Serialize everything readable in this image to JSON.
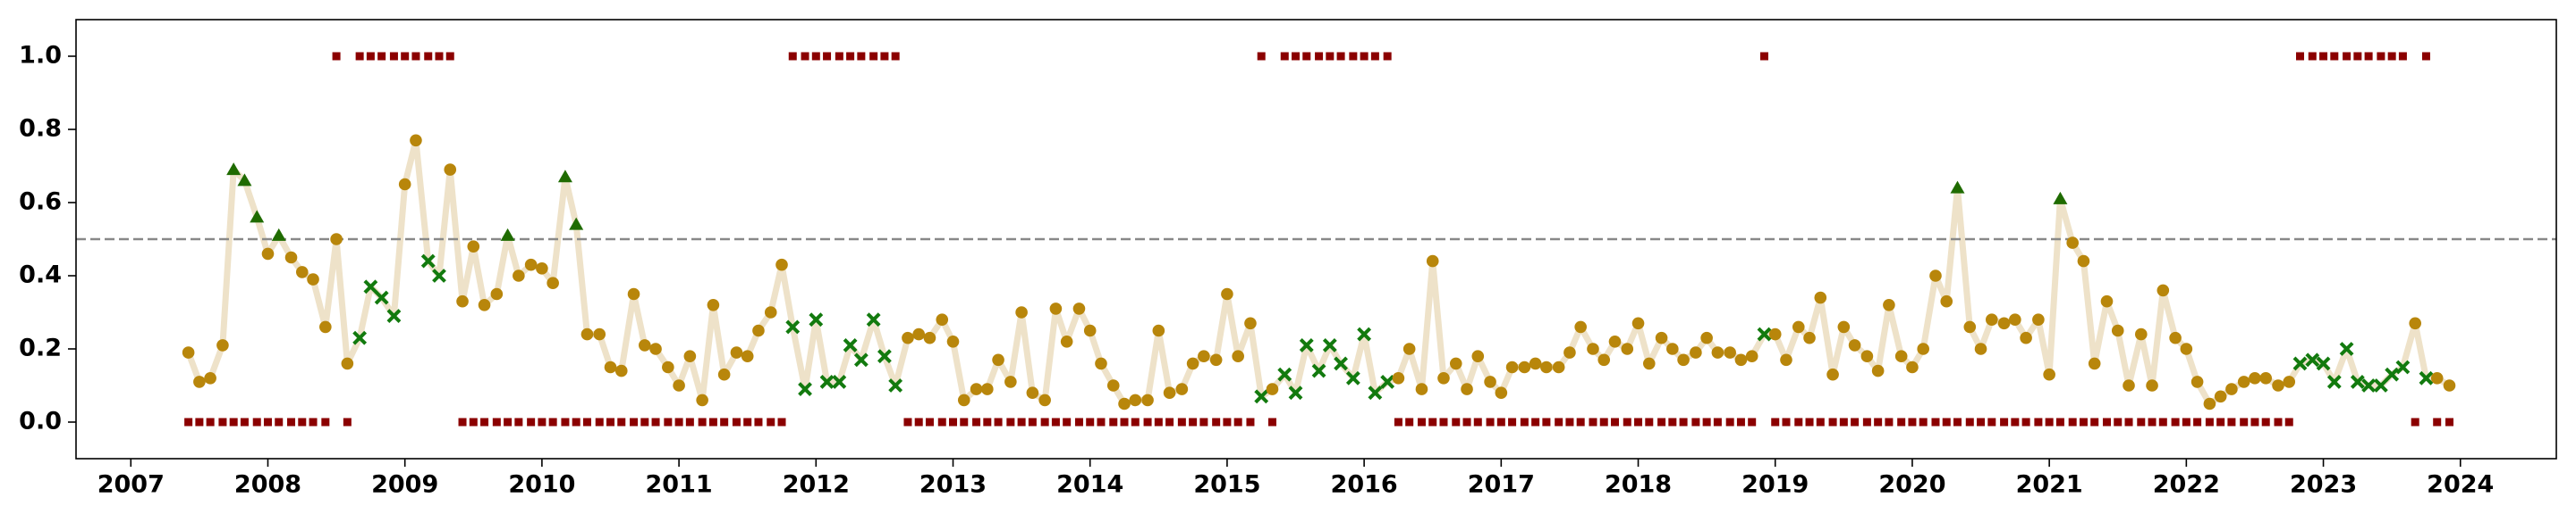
{
  "chart_data": {
    "type": "line",
    "x": [
      2007.42,
      2007.5,
      2007.58,
      2007.67,
      2007.75,
      2007.83,
      2007.92,
      2008,
      2008.08,
      2008.17,
      2008.25,
      2008.33,
      2008.42,
      2008.5,
      2008.58,
      2008.67,
      2008.75,
      2008.83,
      2008.92,
      2009,
      2009.08,
      2009.17,
      2009.25,
      2009.33,
      2009.42,
      2009.5,
      2009.58,
      2009.67,
      2009.75,
      2009.83,
      2009.92,
      2010,
      2010.08,
      2010.17,
      2010.25,
      2010.33,
      2010.42,
      2010.5,
      2010.58,
      2010.67,
      2010.75,
      2010.83,
      2010.92,
      2011,
      2011.08,
      2011.17,
      2011.25,
      2011.33,
      2011.42,
      2011.5,
      2011.58,
      2011.67,
      2011.75,
      2011.83,
      2011.92,
      2012,
      2012.08,
      2012.17,
      2012.25,
      2012.33,
      2012.42,
      2012.5,
      2012.58,
      2012.67,
      2012.75,
      2012.83,
      2012.92,
      2013,
      2013.08,
      2013.17,
      2013.25,
      2013.33,
      2013.42,
      2013.5,
      2013.58,
      2013.67,
      2013.75,
      2013.83,
      2013.92,
      2014,
      2014.08,
      2014.17,
      2014.25,
      2014.33,
      2014.42,
      2014.5,
      2014.58,
      2014.67,
      2014.75,
      2014.83,
      2014.92,
      2015,
      2015.08,
      2015.17,
      2015.25,
      2015.33,
      2015.42,
      2015.5,
      2015.58,
      2015.67,
      2015.75,
      2015.83,
      2015.92,
      2016,
      2016.08,
      2016.17,
      2016.25,
      2016.33,
      2016.42,
      2016.5,
      2016.58,
      2016.67,
      2016.75,
      2016.83,
      2016.92,
      2017,
      2017.08,
      2017.17,
      2017.25,
      2017.33,
      2017.42,
      2017.5,
      2017.58,
      2017.67,
      2017.75,
      2017.83,
      2017.92,
      2018,
      2018.08,
      2018.17,
      2018.25,
      2018.33,
      2018.42,
      2018.5,
      2018.58,
      2018.67,
      2018.75,
      2018.83,
      2018.92,
      2019,
      2019.08,
      2019.17,
      2019.25,
      2019.33,
      2019.42,
      2019.5,
      2019.58,
      2019.67,
      2019.75,
      2019.83,
      2019.92,
      2020,
      2020.08,
      2020.17,
      2020.25,
      2020.33,
      2020.42,
      2020.5,
      2020.58,
      2020.67,
      2020.75,
      2020.83,
      2020.92,
      2021,
      2021.08,
      2021.17,
      2021.25,
      2021.33,
      2021.42,
      2021.5,
      2021.58,
      2021.67,
      2021.75,
      2021.83,
      2021.92,
      2022,
      2022.08,
      2022.17,
      2022.25,
      2022.33,
      2022.42,
      2022.5,
      2022.58,
      2022.67,
      2022.75,
      2022.83,
      2022.92,
      2023,
      2023.08,
      2023.17,
      2023.25,
      2023.33,
      2023.42,
      2023.5,
      2023.58,
      2023.67,
      2023.75,
      2023.83,
      2023.92
    ],
    "series": [
      {
        "color": "#ecdfc3",
        "line": true,
        "marker_colors": {
          "o": "#b8860b",
          "^": "#1f6b00",
          "x": "#127a0e"
        },
        "values": [
          0.19,
          0.11,
          0.12,
          0.21,
          0.69,
          0.66,
          0.56,
          0.46,
          0.51,
          0.45,
          0.41,
          0.39,
          0.26,
          0.5,
          0.16,
          0.23,
          0.37,
          0.34,
          0.29,
          0.65,
          0.77,
          0.44,
          0.4,
          0.69,
          0.33,
          0.48,
          0.32,
          0.35,
          0.51,
          0.4,
          0.43,
          0.42,
          0.38,
          0.67,
          0.54,
          0.24,
          0.24,
          0.15,
          0.14,
          0.35,
          0.21,
          0.2,
          0.15,
          0.1,
          0.18,
          0.06,
          0.32,
          0.13,
          0.19,
          0.18,
          0.25,
          0.3,
          0.43,
          0.26,
          0.09,
          0.28,
          0.11,
          0.11,
          0.21,
          0.17,
          0.28,
          0.18,
          0.1,
          0.23,
          0.24,
          0.23,
          0.28,
          0.22,
          0.06,
          0.09,
          0.09,
          0.17,
          0.11,
          0.3,
          0.08,
          0.06,
          0.31,
          0.22,
          0.31,
          0.25,
          0.16,
          0.1,
          0.05,
          0.06,
          0.06,
          0.25,
          0.08,
          0.09,
          0.16,
          0.18,
          0.17,
          0.35,
          0.18,
          0.27,
          0.07,
          0.09,
          0.13,
          0.08,
          0.21,
          0.14,
          0.21,
          0.16,
          0.12,
          0.24,
          0.08,
          0.11,
          0.12,
          0.2,
          0.09,
          0.44,
          0.12,
          0.16,
          0.09,
          0.18,
          0.11,
          0.08,
          0.15,
          0.15,
          0.16,
          0.15,
          0.15,
          0.19,
          0.26,
          0.2,
          0.17,
          0.22,
          0.2,
          0.27,
          0.16,
          0.23,
          0.2,
          0.17,
          0.19,
          0.23,
          0.19,
          0.19,
          0.17,
          0.18,
          0.24,
          0.24,
          0.17,
          0.26,
          0.23,
          0.34,
          0.13,
          0.26,
          0.21,
          0.18,
          0.14,
          0.32,
          0.18,
          0.15,
          0.2,
          0.4,
          0.33,
          0.64,
          0.26,
          0.2,
          0.28,
          0.27,
          0.28,
          0.23,
          0.28,
          0.13,
          0.61,
          0.49,
          0.44,
          0.16,
          0.33,
          0.25,
          0.1,
          0.24,
          0.1,
          0.36,
          0.23,
          0.2,
          0.11,
          0.05,
          0.07,
          0.09,
          0.11,
          0.12,
          0.12,
          0.1,
          0.11,
          0.16,
          0.17,
          0.16,
          0.11,
          0.2,
          0.11,
          0.1,
          0.1,
          0.13,
          0.15,
          0.27,
          0.12,
          0.12,
          0.1
        ],
        "markers": [
          "o",
          "o",
          "o",
          "o",
          "^",
          "^",
          "^",
          "o",
          "^",
          "o",
          "o",
          "o",
          "o",
          "o",
          "o",
          "x",
          "x",
          "x",
          "x",
          "o",
          "o",
          "x",
          "x",
          "o",
          "o",
          "o",
          "o",
          "o",
          "^",
          "o",
          "o",
          "o",
          "o",
          "^",
          "^",
          "o",
          "o",
          "o",
          "o",
          "o",
          "o",
          "o",
          "o",
          "o",
          "o",
          "o",
          "o",
          "o",
          "o",
          "o",
          "o",
          "o",
          "o",
          "x",
          "x",
          "x",
          "x",
          "x",
          "x",
          "x",
          "x",
          "x",
          "x",
          "o",
          "o",
          "o",
          "o",
          "o",
          "o",
          "o",
          "o",
          "o",
          "o",
          "o",
          "o",
          "o",
          "o",
          "o",
          "o",
          "o",
          "o",
          "o",
          "o",
          "o",
          "o",
          "o",
          "o",
          "o",
          "o",
          "o",
          "o",
          "o",
          "o",
          "o",
          "x",
          "o",
          "x",
          "x",
          "x",
          "x",
          "x",
          "x",
          "x",
          "x",
          "x",
          "x",
          "o",
          "o",
          "o",
          "o",
          "o",
          "o",
          "o",
          "o",
          "o",
          "o",
          "o",
          "o",
          "o",
          "o",
          "o",
          "o",
          "o",
          "o",
          "o",
          "o",
          "o",
          "o",
          "o",
          "o",
          "o",
          "o",
          "o",
          "o",
          "o",
          "o",
          "o",
          "o",
          "x",
          "o",
          "o",
          "o",
          "o",
          "o",
          "o",
          "o",
          "o",
          "o",
          "o",
          "o",
          "o",
          "o",
          "o",
          "o",
          "o",
          "^",
          "o",
          "o",
          "o",
          "o",
          "o",
          "o",
          "o",
          "o",
          "^",
          "o",
          "o",
          "o",
          "o",
          "o",
          "o",
          "o",
          "o",
          "o",
          "o",
          "o",
          "o",
          "o",
          "o",
          "o",
          "o",
          "o",
          "o",
          "o",
          "o",
          "x",
          "x",
          "x",
          "x",
          "x",
          "x",
          "x",
          "x",
          "x",
          "x",
          "o",
          "x",
          "o",
          "o"
        ]
      },
      {
        "color": "#8b0000",
        "line": false,
        "marker": "s",
        "values": [
          0,
          0,
          0,
          0,
          0,
          0,
          0,
          0,
          0,
          0,
          0,
          0,
          0,
          1,
          0,
          1,
          1,
          1,
          1,
          1,
          1,
          1,
          1,
          1,
          0,
          0,
          0,
          0,
          0,
          0,
          0,
          0,
          0,
          0,
          0,
          0,
          0,
          0,
          0,
          0,
          0,
          0,
          0,
          0,
          0,
          0,
          0,
          0,
          0,
          0,
          0,
          0,
          0,
          1,
          1,
          1,
          1,
          1,
          1,
          1,
          1,
          1,
          1,
          0,
          0,
          0,
          0,
          0,
          0,
          0,
          0,
          0,
          0,
          0,
          0,
          0,
          0,
          0,
          0,
          0,
          0,
          0,
          0,
          0,
          0,
          0,
          0,
          0,
          0,
          0,
          0,
          0,
          0,
          0,
          1,
          0,
          1,
          1,
          1,
          1,
          1,
          1,
          1,
          1,
          1,
          1,
          0,
          0,
          0,
          0,
          0,
          0,
          0,
          0,
          0,
          0,
          0,
          0,
          0,
          0,
          0,
          0,
          0,
          0,
          0,
          0,
          0,
          0,
          0,
          0,
          0,
          0,
          0,
          0,
          0,
          0,
          0,
          0,
          1,
          0,
          0,
          0,
          0,
          0,
          0,
          0,
          0,
          0,
          0,
          0,
          0,
          0,
          0,
          0,
          0,
          0,
          0,
          0,
          0,
          0,
          0,
          0,
          0,
          0,
          0,
          0,
          0,
          0,
          0,
          0,
          0,
          0,
          0,
          0,
          0,
          0,
          0,
          0,
          0,
          0,
          0,
          0,
          0,
          0,
          0,
          1,
          1,
          1,
          1,
          1,
          1,
          1,
          1,
          1,
          1,
          0,
          1,
          0,
          0
        ]
      }
    ],
    "hline": 0.5,
    "hline_color": "#888888",
    "xlim": [
      2006.6,
      2024.7
    ],
    "xticks": [
      2007,
      2008,
      2009,
      2010,
      2011,
      2012,
      2013,
      2014,
      2015,
      2016,
      2017,
      2018,
      2019,
      2020,
      2021,
      2022,
      2023,
      2024
    ],
    "ylim": [
      -0.1,
      1.1
    ],
    "yticks": [
      {
        "value": 0,
        "label": "0.0"
      },
      0.2,
      0.4,
      0.6,
      0.8,
      {
        "value": 1,
        "label": "1.0"
      }
    ]
  }
}
